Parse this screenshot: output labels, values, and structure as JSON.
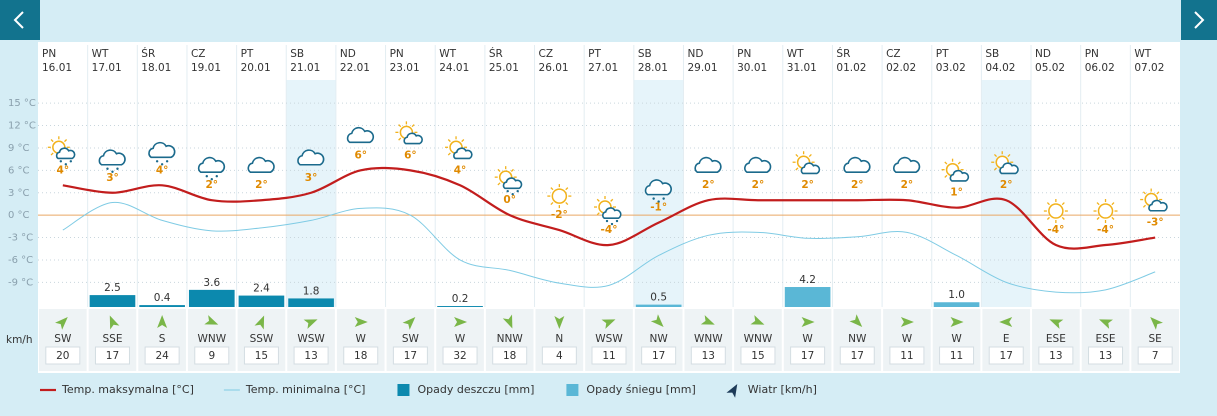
{
  "chart_data": {
    "type": "weather",
    "weekdays": [
      "PN",
      "WT",
      "ŚR",
      "CZ",
      "PT",
      "SB",
      "ND",
      "PN",
      "WT",
      "ŚR",
      "CZ",
      "PT",
      "SB",
      "ND",
      "PN",
      "WT",
      "ŚR",
      "CZ",
      "PT",
      "SB",
      "ND",
      "PN",
      "WT"
    ],
    "categories": [
      "16.01",
      "17.01",
      "18.01",
      "19.01",
      "20.01",
      "21.01",
      "22.01",
      "23.01",
      "24.01",
      "25.01",
      "26.01",
      "27.01",
      "28.01",
      "29.01",
      "30.01",
      "31.01",
      "01.02",
      "02.02",
      "03.02",
      "04.02",
      "05.02",
      "06.02",
      "07.02"
    ],
    "ylim": [
      -12.3,
      18.1
    ],
    "yticks": [
      {
        "value": 15,
        "label": "15 °C"
      },
      {
        "value": 12,
        "label": "12 °C"
      },
      {
        "value": 9,
        "label": "9 °C"
      },
      {
        "value": 6,
        "label": "6 °C"
      },
      {
        "value": 3,
        "label": "3 °C"
      },
      {
        "value": 0,
        "label": "0 °C"
      },
      {
        "value": -3,
        "label": "-3 °C"
      },
      {
        "value": -6,
        "label": "-6 °C"
      },
      {
        "value": -9,
        "label": "-9 °C"
      }
    ],
    "y2lim": [
      0,
      47.7
    ],
    "grid": true,
    "wind_unit": "km/h",
    "series": [
      {
        "name": "Temp. maksymalna [°C]",
        "type": "line",
        "color": "#c21d1d",
        "width": 2.2,
        "values": [
          4,
          3,
          4,
          2,
          2,
          3,
          6,
          6,
          4,
          0,
          -2,
          -4,
          -1,
          2,
          2,
          2,
          2,
          2,
          1,
          2,
          -4,
          -4,
          -3
        ],
        "value_labels": [
          "4°",
          "3°",
          "4°",
          "2°",
          "2°",
          "3°",
          "6°",
          "6°",
          "4°",
          "0°",
          "-2°",
          "-4°",
          "-1°",
          "2°",
          "2°",
          "2°",
          "2°",
          "2°",
          "1°",
          "2°",
          "-4°",
          "-4°",
          "-3°"
        ]
      },
      {
        "name": "Temp. minimalna [°C]",
        "type": "line",
        "color": "#7fcbe4",
        "width": 1,
        "values": [
          -2,
          1.7,
          -0.7,
          -2.1,
          -1.7,
          -0.7,
          0.9,
          0,
          -6,
          -7.4,
          -9.1,
          -9.4,
          -5.4,
          -2.7,
          -2.3,
          -3.1,
          -2.9,
          -2.3,
          -5.4,
          -9,
          -10.3,
          -10,
          -7.6
        ]
      },
      {
        "name": "Opady deszczu [mm]",
        "type": "bar",
        "axis": "y2",
        "color": "#0c89ae",
        "values": [
          null,
          2.5,
          0.4,
          3.6,
          2.4,
          1.8,
          null,
          null,
          0.2,
          null,
          null,
          null,
          null,
          null,
          null,
          null,
          null,
          null,
          null,
          null,
          null,
          null,
          null
        ]
      },
      {
        "name": "Opady śniegu [mm]",
        "type": "bar",
        "axis": "y2",
        "color": "#5ab7d6",
        "values": [
          null,
          null,
          null,
          null,
          null,
          null,
          null,
          null,
          null,
          null,
          null,
          null,
          0.5,
          null,
          null,
          4.2,
          null,
          null,
          1.0,
          null,
          null,
          null,
          null
        ],
        "value_labels": [
          null,
          null,
          null,
          null,
          null,
          null,
          null,
          null,
          null,
          null,
          null,
          null,
          "0.5",
          null,
          null,
          "4.2",
          null,
          null,
          "1.0",
          null,
          null,
          null,
          null
        ]
      },
      {
        "name": "Wiatr [km/h]",
        "type": "wind",
        "color": "#7ab648",
        "directions": [
          "SW",
          "SSE",
          "S",
          "WNW",
          "SSW",
          "WSW",
          "W",
          "SW",
          "W",
          "NNW",
          "N",
          "WSW",
          "NW",
          "WNW",
          "WNW",
          "W",
          "NW",
          "W",
          "W",
          "E",
          "ESE",
          "ESE",
          "SE"
        ],
        "values": [
          20,
          17,
          24,
          9,
          15,
          13,
          18,
          17,
          32,
          18,
          4,
          11,
          17,
          13,
          15,
          17,
          17,
          11,
          11,
          17,
          13,
          13,
          7
        ]
      }
    ]
  }
}
